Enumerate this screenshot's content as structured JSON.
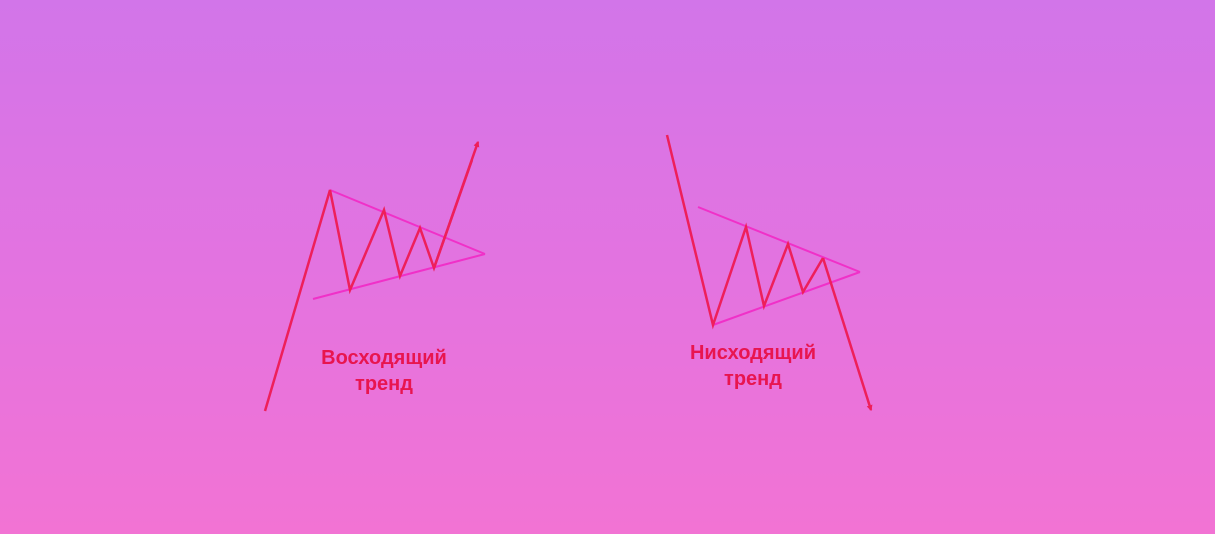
{
  "colors": {
    "price_line": "#ee1f5a",
    "pennant_border": "#f030c8",
    "label_text": "#e8154f"
  },
  "panels": [
    {
      "id": "uptrend",
      "label_line1": "Восходящий",
      "label_line2": "тренд",
      "arrow": "up"
    },
    {
      "id": "downtrend",
      "label_line1": "Нисходящий",
      "label_line2": "тренд",
      "arrow": "down"
    }
  ]
}
